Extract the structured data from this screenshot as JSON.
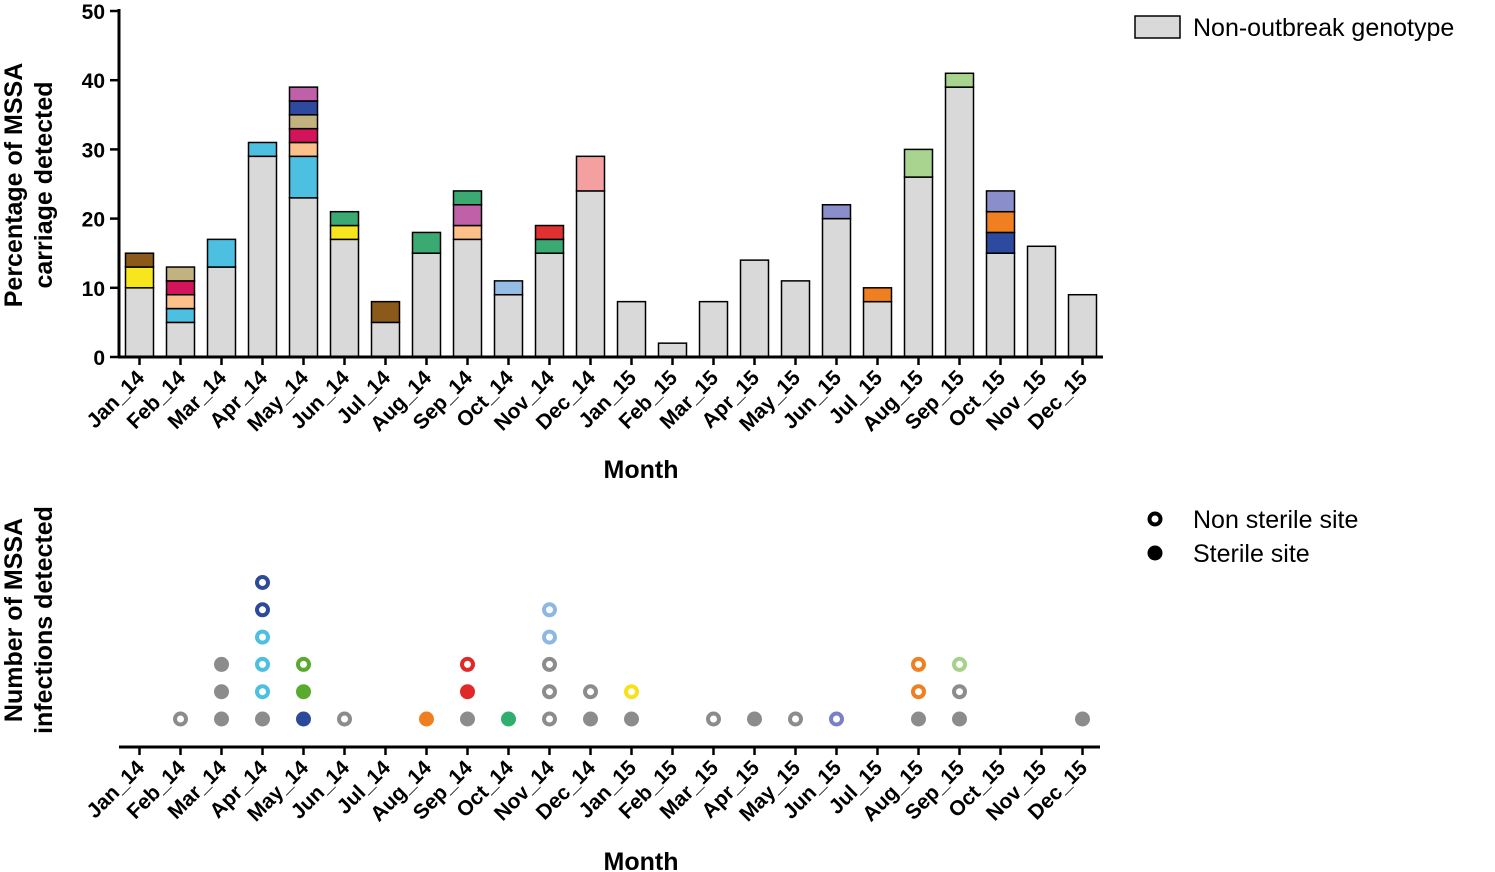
{
  "chart_data": [
    {
      "type": "stacked_bar",
      "xlabel": "Month",
      "ylabel": [
        "Percentage of MSSA",
        "carriage detected"
      ],
      "categories": [
        "Jan_14",
        "Feb_14",
        "Mar_14",
        "Apr_14",
        "May_14",
        "Jun_14",
        "Jul_14",
        "Aug_14",
        "Sep_14",
        "Oct_14",
        "Nov_14",
        "Dec_14",
        "Jan_15",
        "Feb_15",
        "Mar_15",
        "Apr_15",
        "May_15",
        "Jun_15",
        "Jul_15",
        "Aug_15",
        "Sep_15",
        "Oct_15",
        "Nov_15",
        "Dec_15"
      ],
      "ylim": [
        0,
        50
      ],
      "yticks": [
        0,
        10,
        20,
        30,
        40,
        50
      ],
      "legend": "top-right",
      "series": [
        {
          "name": "Non-outbreak genotype",
          "color": "#d9d9d9",
          "values": [
            10,
            5,
            13,
            29,
            23,
            17,
            5,
            15,
            17,
            9,
            15,
            24,
            8,
            2,
            8,
            14,
            11,
            20,
            8,
            26,
            39,
            15,
            16,
            9
          ]
        },
        {
          "color": "#f7e51d",
          "values": [
            3,
            0,
            0,
            0,
            0,
            2,
            0,
            0,
            0,
            0,
            0,
            0,
            0,
            0,
            0,
            0,
            0,
            0,
            0,
            0,
            0,
            0,
            0,
            0
          ]
        },
        {
          "color": "#4dbfe0",
          "values": [
            0,
            2,
            4,
            2,
            6,
            0,
            0,
            0,
            0,
            0,
            0,
            0,
            0,
            0,
            0,
            0,
            0,
            0,
            0,
            0,
            0,
            0,
            0,
            0
          ]
        },
        {
          "color": "#fcc08a",
          "values": [
            0,
            2,
            0,
            0,
            2,
            0,
            0,
            0,
            2,
            0,
            0,
            0,
            0,
            0,
            0,
            0,
            0,
            0,
            0,
            0,
            0,
            0,
            0,
            0
          ]
        },
        {
          "color": "#d4145a",
          "values": [
            0,
            2,
            0,
            0,
            2,
            0,
            0,
            0,
            0,
            0,
            0,
            0,
            0,
            0,
            0,
            0,
            0,
            0,
            0,
            0,
            0,
            0,
            0,
            0
          ]
        },
        {
          "color": "#c2b280",
          "values": [
            0,
            2,
            0,
            0,
            2,
            0,
            0,
            0,
            0,
            0,
            0,
            0,
            0,
            0,
            0,
            0,
            0,
            0,
            0,
            0,
            0,
            0,
            0,
            0
          ]
        },
        {
          "color": "#2e4a9e",
          "values": [
            0,
            0,
            0,
            0,
            2,
            0,
            0,
            0,
            0,
            0,
            0,
            0,
            0,
            0,
            0,
            0,
            0,
            0,
            0,
            0,
            0,
            3,
            0,
            0
          ]
        },
        {
          "color": "#f07f22",
          "values": [
            0,
            0,
            0,
            0,
            0,
            0,
            0,
            0,
            0,
            0,
            0,
            0,
            0,
            0,
            0,
            0,
            0,
            0,
            2,
            0,
            0,
            3,
            0,
            0
          ]
        },
        {
          "color": "#8a8fcc",
          "values": [
            0,
            0,
            0,
            0,
            0,
            0,
            0,
            0,
            0,
            0,
            0,
            0,
            0,
            0,
            0,
            0,
            0,
            2,
            0,
            0,
            0,
            3,
            0,
            0
          ]
        },
        {
          "color": "#c060a8",
          "values": [
            0,
            0,
            0,
            0,
            2,
            0,
            0,
            0,
            3,
            0,
            0,
            0,
            0,
            0,
            0,
            0,
            0,
            0,
            0,
            0,
            0,
            0,
            0,
            0
          ]
        },
        {
          "color": "#3aaa72",
          "values": [
            0,
            0,
            0,
            0,
            0,
            2,
            0,
            3,
            2,
            0,
            2,
            0,
            0,
            0,
            0,
            0,
            0,
            0,
            0,
            0,
            0,
            0,
            0,
            0
          ]
        },
        {
          "color": "#e03030",
          "values": [
            0,
            0,
            0,
            0,
            0,
            0,
            0,
            0,
            0,
            0,
            2,
            0,
            0,
            0,
            0,
            0,
            0,
            0,
            0,
            0,
            0,
            0,
            0,
            0
          ]
        },
        {
          "color": "#8b5a1a",
          "values": [
            2,
            0,
            0,
            0,
            0,
            0,
            3,
            0,
            0,
            0,
            0,
            0,
            0,
            0,
            0,
            0,
            0,
            0,
            0,
            0,
            0,
            0,
            0,
            0
          ]
        },
        {
          "color": "#96bde6",
          "values": [
            0,
            0,
            0,
            0,
            0,
            0,
            0,
            0,
            0,
            2,
            0,
            0,
            0,
            0,
            0,
            0,
            0,
            0,
            0,
            0,
            0,
            0,
            0,
            0
          ]
        },
        {
          "color": "#f4a0a0",
          "values": [
            0,
            0,
            0,
            0,
            0,
            0,
            0,
            0,
            0,
            0,
            0,
            5,
            0,
            0,
            0,
            0,
            0,
            0,
            0,
            0,
            0,
            0,
            0,
            0
          ]
        },
        {
          "color": "#a8d490",
          "values": [
            0,
            0,
            0,
            0,
            0,
            0,
            0,
            0,
            0,
            0,
            0,
            0,
            0,
            0,
            0,
            0,
            0,
            0,
            0,
            4,
            2,
            0,
            0,
            0
          ]
        }
      ]
    },
    {
      "type": "dot",
      "xlabel": "Month",
      "ylabel": [
        "Number of MSSA",
        "infections detected"
      ],
      "categories": [
        "Jan_14",
        "Feb_14",
        "Mar_14",
        "Apr_14",
        "May_14",
        "Jun_14",
        "Jul_14",
        "Aug_14",
        "Sep_14",
        "Oct_14",
        "Nov_14",
        "Dec_14",
        "Jan_15",
        "Feb_15",
        "Mar_15",
        "Apr_15",
        "May_15",
        "Jun_15",
        "Jul_15",
        "Aug_15",
        "Sep_15",
        "Oct_15",
        "Nov_15",
        "Dec_15"
      ],
      "legend": "top-right",
      "series": [
        {
          "name": "Non sterile site",
          "marker": "ring"
        },
        {
          "name": "Sterile site",
          "marker": "filled"
        }
      ],
      "points": [
        {
          "category": 1,
          "y": 1,
          "series": 0,
          "color": "#8c8c8c"
        },
        {
          "category": 2,
          "y": 1,
          "series": 1,
          "color": "#8c8c8c"
        },
        {
          "category": 2,
          "y": 2,
          "series": 1,
          "color": "#8c8c8c"
        },
        {
          "category": 2,
          "y": 3,
          "series": 1,
          "color": "#8c8c8c"
        },
        {
          "category": 3,
          "y": 1,
          "series": 1,
          "color": "#8c8c8c"
        },
        {
          "category": 3,
          "y": 2,
          "series": 0,
          "color": "#4dbfe0"
        },
        {
          "category": 3,
          "y": 3,
          "series": 0,
          "color": "#4dbfe0"
        },
        {
          "category": 3,
          "y": 4,
          "series": 0,
          "color": "#4dbfe0"
        },
        {
          "category": 3,
          "y": 5,
          "series": 0,
          "color": "#2c4a9a"
        },
        {
          "category": 3,
          "y": 6,
          "series": 0,
          "color": "#2c4a9a"
        },
        {
          "category": 4,
          "y": 1,
          "series": 1,
          "color": "#2c4a9a"
        },
        {
          "category": 4,
          "y": 2,
          "series": 1,
          "color": "#5aaa2e"
        },
        {
          "category": 4,
          "y": 3,
          "series": 0,
          "color": "#5aaa2e"
        },
        {
          "category": 5,
          "y": 1,
          "series": 0,
          "color": "#8c8c8c"
        },
        {
          "category": 7,
          "y": 1,
          "series": 1,
          "color": "#f07f22"
        },
        {
          "category": 8,
          "y": 1,
          "series": 1,
          "color": "#8c8c8c"
        },
        {
          "category": 8,
          "y": 2,
          "series": 1,
          "color": "#e02a2a"
        },
        {
          "category": 8,
          "y": 3,
          "series": 0,
          "color": "#e02a2a"
        },
        {
          "category": 9,
          "y": 1,
          "series": 1,
          "color": "#2fae6e"
        },
        {
          "category": 10,
          "y": 1,
          "series": 0,
          "color": "#8c8c8c"
        },
        {
          "category": 10,
          "y": 2,
          "series": 0,
          "color": "#8c8c8c"
        },
        {
          "category": 10,
          "y": 3,
          "series": 0,
          "color": "#8c8c8c"
        },
        {
          "category": 10,
          "y": 4,
          "series": 0,
          "color": "#8db8e2"
        },
        {
          "category": 10,
          "y": 5,
          "series": 0,
          "color": "#8db8e2"
        },
        {
          "category": 11,
          "y": 1,
          "series": 1,
          "color": "#8c8c8c"
        },
        {
          "category": 11,
          "y": 2,
          "series": 0,
          "color": "#8c8c8c"
        },
        {
          "category": 12,
          "y": 1,
          "series": 1,
          "color": "#8c8c8c"
        },
        {
          "category": 12,
          "y": 2,
          "series": 0,
          "color": "#f5e21a"
        },
        {
          "category": 14,
          "y": 1,
          "series": 0,
          "color": "#8c8c8c"
        },
        {
          "category": 15,
          "y": 1,
          "series": 1,
          "color": "#8c8c8c"
        },
        {
          "category": 16,
          "y": 1,
          "series": 0,
          "color": "#8c8c8c"
        },
        {
          "category": 17,
          "y": 1,
          "series": 0,
          "color": "#7a80c8"
        },
        {
          "category": 19,
          "y": 1,
          "series": 1,
          "color": "#8c8c8c"
        },
        {
          "category": 19,
          "y": 2,
          "series": 0,
          "color": "#f07f22"
        },
        {
          "category": 19,
          "y": 3,
          "series": 0,
          "color": "#f07f22"
        },
        {
          "category": 20,
          "y": 1,
          "series": 1,
          "color": "#8c8c8c"
        },
        {
          "category": 20,
          "y": 2,
          "series": 0,
          "color": "#8c8c8c"
        },
        {
          "category": 20,
          "y": 3,
          "series": 0,
          "color": "#a6d18a"
        },
        {
          "category": 23,
          "y": 1,
          "series": 1,
          "color": "#8c8c8c"
        }
      ]
    }
  ]
}
